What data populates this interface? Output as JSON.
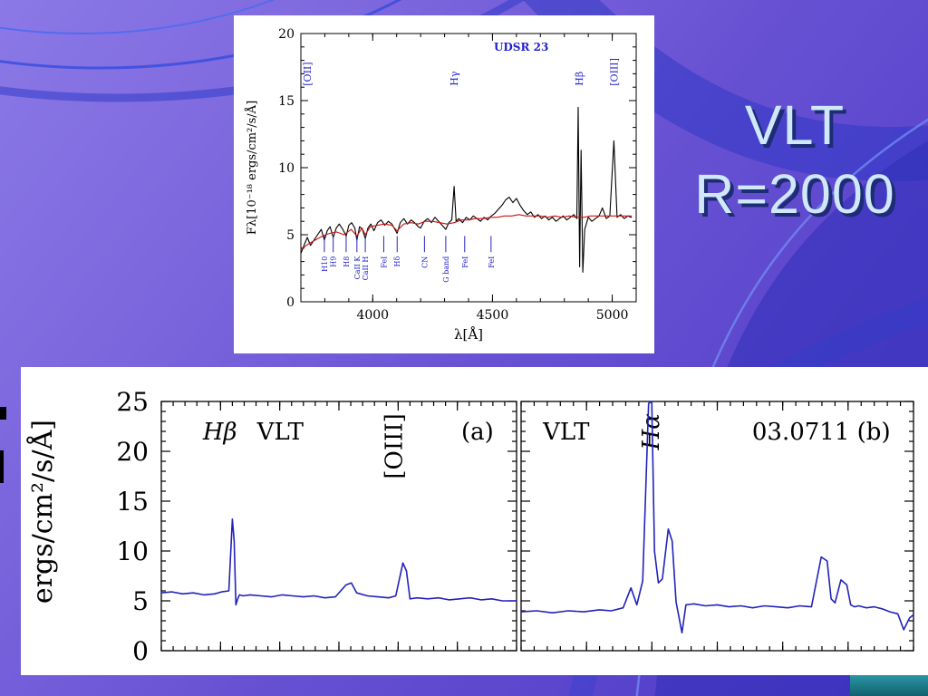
{
  "slide": {
    "title": {
      "line1": "VLT",
      "line2": "R=2000"
    },
    "colors": {
      "title_fill": "#cfe9fb",
      "title_shadow": "#1d2c74",
      "spectrum_blue": "#2222bb",
      "observed_black": "#000000",
      "model_red": "#cc1111",
      "marker_blue": "#2222cc",
      "corner_accent": "#1c7f8d"
    }
  },
  "chart_data": [
    {
      "type": "line",
      "title": "UDSR 23",
      "xlabel": "λ[Å]",
      "ylabel": "Fλ[10⁻¹⁸  ergs/cm²/s/Å]",
      "xlim": [
        3700,
        5100
      ],
      "ylim": [
        0,
        20
      ],
      "xticks": [
        4000,
        4500,
        5000
      ],
      "yticks": [
        0,
        5,
        10,
        15,
        20
      ],
      "x_minor_step": 100,
      "y_minor_step": 1,
      "grid": false,
      "top_line_labels": [
        {
          "text": "[OII]",
          "x": 3727
        },
        {
          "text": "Hγ",
          "x": 4340
        },
        {
          "text": "Hβ",
          "x": 4861
        },
        {
          "text": "[OIII]",
          "x": 5007
        }
      ],
      "absorption_markers": [
        {
          "text": "H10",
          "x": 3798
        },
        {
          "text": "H9",
          "x": 3835
        },
        {
          "text": "H8",
          "x": 3889
        },
        {
          "text": "CaII K",
          "x": 3934
        },
        {
          "text": "CaII H",
          "x": 3969
        },
        {
          "text": "FeI",
          "x": 4046
        },
        {
          "text": "Hδ",
          "x": 4102
        },
        {
          "text": "CN",
          "x": 4216
        },
        {
          "text": "G band",
          "x": 4305
        },
        {
          "text": "FeI",
          "x": 4384
        },
        {
          "text": "FeI",
          "x": 4494
        }
      ],
      "series": [
        {
          "name": "observed spectrum",
          "color": "#000000",
          "x": [
            3700,
            3715,
            3727,
            3740,
            3755,
            3770,
            3785,
            3798,
            3810,
            3822,
            3835,
            3848,
            3860,
            3875,
            3889,
            3900,
            3912,
            3925,
            3934,
            3945,
            3957,
            3969,
            3980,
            3992,
            4005,
            4020,
            4035,
            4050,
            4065,
            4080,
            4102,
            4115,
            4130,
            4145,
            4160,
            4175,
            4190,
            4200,
            4215,
            4230,
            4245,
            4260,
            4275,
            4290,
            4305,
            4318,
            4330,
            4340,
            4348,
            4360,
            4375,
            4390,
            4405,
            4420,
            4435,
            4450,
            4465,
            4480,
            4495,
            4510,
            4525,
            4540,
            4555,
            4570,
            4585,
            4600,
            4615,
            4630,
            4645,
            4660,
            4675,
            4690,
            4705,
            4720,
            4735,
            4750,
            4765,
            4780,
            4795,
            4810,
            4825,
            4840,
            4852,
            4858,
            4864,
            4870,
            4877,
            4885,
            4900,
            4915,
            4930,
            4945,
            4959,
            4975,
            4990,
            5007,
            5020,
            5035,
            5050,
            5065,
            5080
          ],
          "y": [
            3.6,
            4.3,
            4.8,
            4.2,
            4.6,
            5.0,
            5.4,
            4.6,
            5.3,
            5.6,
            4.8,
            5.5,
            5.8,
            5.4,
            4.9,
            5.7,
            5.9,
            5.5,
            4.6,
            5.6,
            5.4,
            4.7,
            5.5,
            5.8,
            5.3,
            5.9,
            6.1,
            5.7,
            6.0,
            5.8,
            5.1,
            5.9,
            6.2,
            5.8,
            6.1,
            5.9,
            5.6,
            5.5,
            6.0,
            6.2,
            5.9,
            6.3,
            6.0,
            5.7,
            5.4,
            5.9,
            6.1,
            8.6,
            6.0,
            6.2,
            5.9,
            6.3,
            6.1,
            6.4,
            6.2,
            6.0,
            6.3,
            6.1,
            6.4,
            6.6,
            6.9,
            7.2,
            7.6,
            7.8,
            7.4,
            7.7,
            7.2,
            6.8,
            6.5,
            6.7,
            6.3,
            6.5,
            6.2,
            6.4,
            6.1,
            6.3,
            6.0,
            6.2,
            6.4,
            6.1,
            6.3,
            6.5,
            6.2,
            14.5,
            2.6,
            11.3,
            2.2,
            5.4,
            6.3,
            6.0,
            6.2,
            6.4,
            7.0,
            6.2,
            6.4,
            12.0,
            6.3,
            6.5,
            6.2,
            6.4,
            6.3
          ]
        },
        {
          "name": "model fit",
          "color": "#cc1111",
          "x": [
            3700,
            3730,
            3760,
            3790,
            3820,
            3850,
            3880,
            3910,
            3934,
            3955,
            3969,
            3990,
            4020,
            4050,
            4080,
            4102,
            4130,
            4160,
            4190,
            4220,
            4250,
            4280,
            4310,
            4340,
            4370,
            4400,
            4430,
            4460,
            4490,
            4520,
            4550,
            4580,
            4610,
            4640,
            4670,
            4700,
            4730,
            4760,
            4790,
            4820,
            4850,
            4880,
            4910,
            4940,
            4970,
            5000,
            5030,
            5060,
            5080
          ],
          "y": [
            3.9,
            4.3,
            4.6,
            4.9,
            5.1,
            5.2,
            5.0,
            5.4,
            4.9,
            5.5,
            5.0,
            5.6,
            5.7,
            5.8,
            5.7,
            5.3,
            5.8,
            5.9,
            5.8,
            6.0,
            6.0,
            5.9,
            5.8,
            5.9,
            6.1,
            6.1,
            6.2,
            6.2,
            6.3,
            6.3,
            6.4,
            6.4,
            6.5,
            6.4,
            6.4,
            6.4,
            6.3,
            6.4,
            6.3,
            6.4,
            6.3,
            6.3,
            6.4,
            6.4,
            6.4,
            6.4,
            6.4,
            6.4,
            6.4
          ]
        }
      ]
    },
    {
      "type": "line",
      "ylabel_visible": "ergs/cm²/s/Å]",
      "ylim": [
        0,
        25
      ],
      "yticks": [
        0,
        5,
        10,
        15,
        20,
        25
      ],
      "y_minor_step": 1,
      "grid": false,
      "panels": [
        {
          "labels": [
            {
              "text": "Hβ",
              "x": 0.165,
              "y": 21.2,
              "italic": true
            },
            {
              "text": "VLT",
              "x": 0.335,
              "y": 21.2
            },
            {
              "text": "[OIII]",
              "x": 0.655,
              "y": 23.8,
              "rotate": true
            },
            {
              "text": "(a)",
              "x": 0.89,
              "y": 21.2
            }
          ],
          "series": {
            "name": "VLT spectrum (a)",
            "color": "#2222bb",
            "x": [
              0,
              0.03,
              0.06,
              0.09,
              0.12,
              0.15,
              0.17,
              0.19,
              0.2,
              0.205,
              0.21,
              0.215,
              0.22,
              0.23,
              0.25,
              0.28,
              0.31,
              0.34,
              0.37,
              0.4,
              0.43,
              0.46,
              0.49,
              0.52,
              0.535,
              0.55,
              0.58,
              0.61,
              0.64,
              0.66,
              0.68,
              0.69,
              0.7,
              0.72,
              0.75,
              0.78,
              0.81,
              0.84,
              0.87,
              0.9,
              0.93,
              0.96,
              1.0
            ],
            "y": [
              5.8,
              5.9,
              5.7,
              5.8,
              5.6,
              5.7,
              5.9,
              6.0,
              13.2,
              11.0,
              4.6,
              5.2,
              5.6,
              5.5,
              5.6,
              5.5,
              5.4,
              5.6,
              5.5,
              5.4,
              5.5,
              5.3,
              5.4,
              6.6,
              6.8,
              5.8,
              5.5,
              5.4,
              5.3,
              5.5,
              8.8,
              8.0,
              5.2,
              5.3,
              5.2,
              5.3,
              5.1,
              5.2,
              5.3,
              5.1,
              5.2,
              5.0,
              5.0
            ]
          }
        },
        {
          "labels": [
            {
              "text": "VLT",
              "x": 0.115,
              "y": 21.2
            },
            {
              "text": "Hα",
              "x": 0.33,
              "y": 23.8,
              "rotate": true,
              "italic": true
            },
            {
              "text": "03.0711 (b)",
              "x": 0.765,
              "y": 21.2
            }
          ],
          "series": {
            "name": "VLT spectrum (b)",
            "color": "#2222bb",
            "x": [
              0,
              0.04,
              0.08,
              0.12,
              0.16,
              0.2,
              0.23,
              0.26,
              0.28,
              0.295,
              0.31,
              0.325,
              0.333,
              0.34,
              0.35,
              0.36,
              0.375,
              0.385,
              0.395,
              0.41,
              0.42,
              0.44,
              0.47,
              0.5,
              0.53,
              0.56,
              0.59,
              0.62,
              0.65,
              0.68,
              0.71,
              0.74,
              0.765,
              0.78,
              0.79,
              0.8,
              0.815,
              0.83,
              0.84,
              0.85,
              0.86,
              0.88,
              0.9,
              0.92,
              0.94,
              0.96,
              0.975,
              0.99,
              1.0
            ],
            "y": [
              3.9,
              4.0,
              3.8,
              4.0,
              3.9,
              4.1,
              4.0,
              4.3,
              6.3,
              4.6,
              7.0,
              24.8,
              25.0,
              10.0,
              6.8,
              7.2,
              12.2,
              11.0,
              4.9,
              1.8,
              4.6,
              4.7,
              4.5,
              4.6,
              4.4,
              4.5,
              4.3,
              4.5,
              4.4,
              4.3,
              4.5,
              4.4,
              9.4,
              9.0,
              5.2,
              4.8,
              7.1,
              6.6,
              4.6,
              4.4,
              4.5,
              4.3,
              4.4,
              4.2,
              3.9,
              3.7,
              2.1,
              3.3,
              3.6
            ]
          }
        }
      ]
    }
  ]
}
